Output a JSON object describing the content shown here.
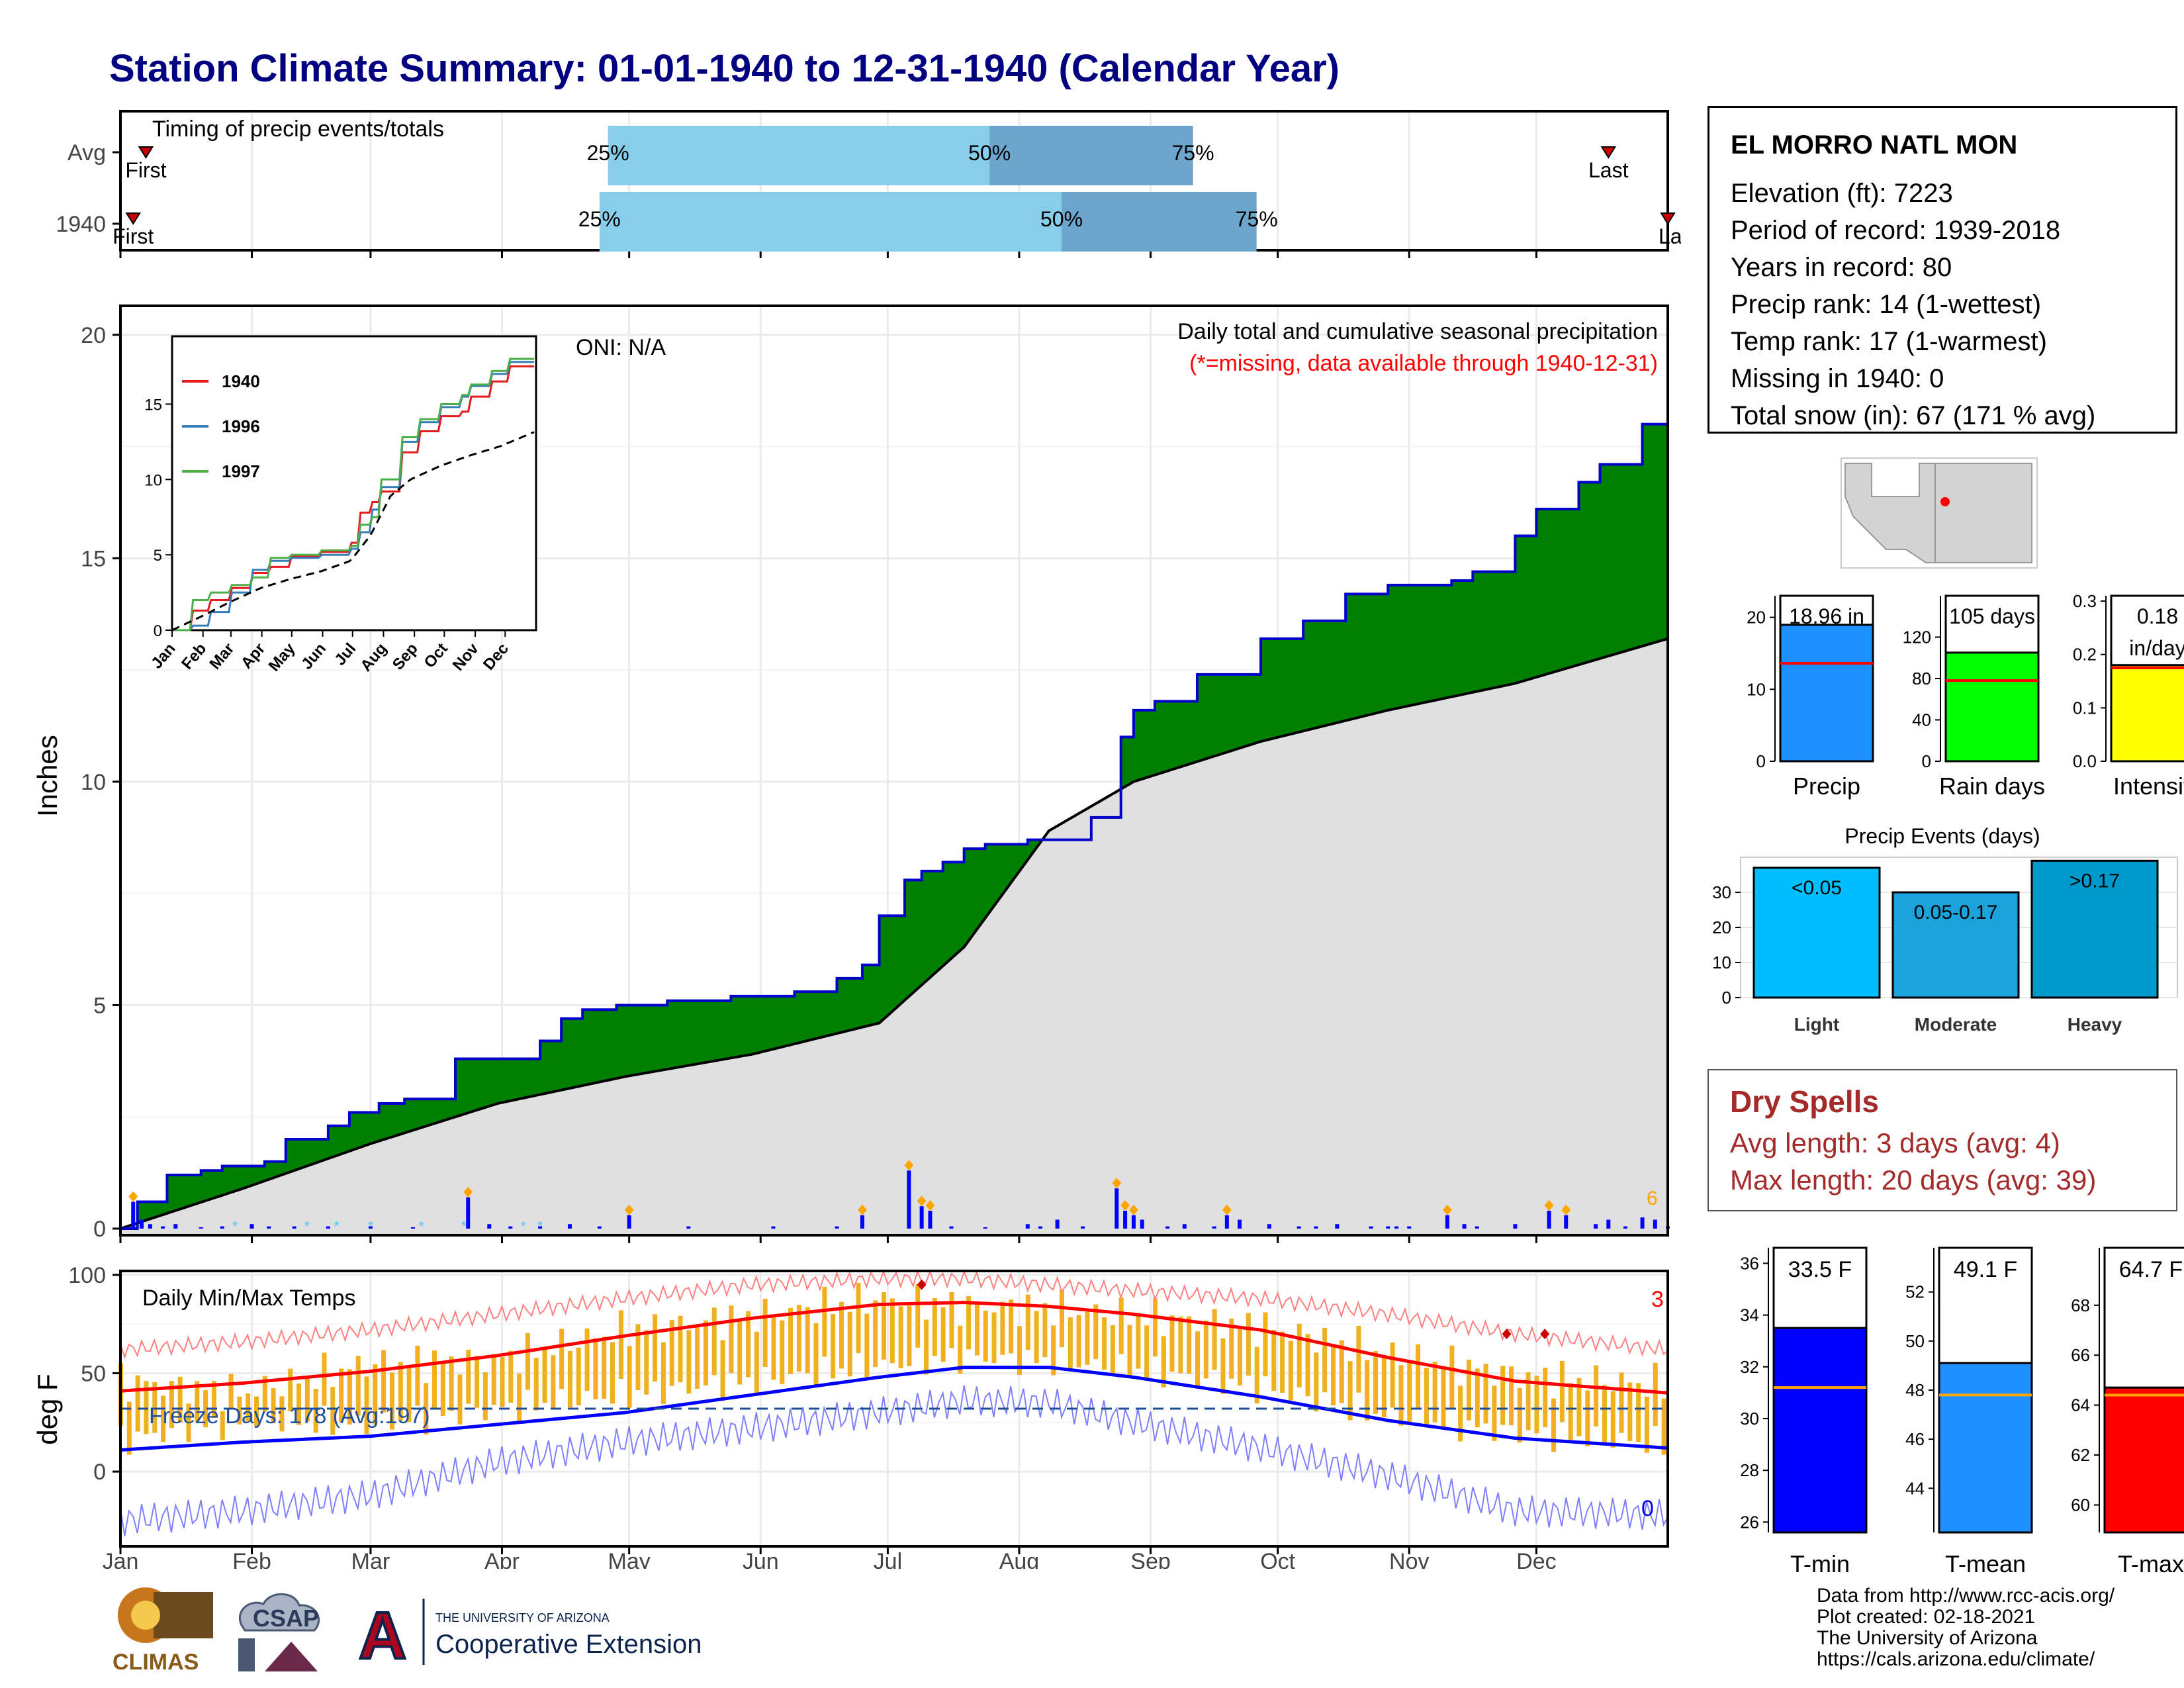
{
  "title": "Station Climate Summary: 01-01-1940 to 12-31-1940 (Calendar Year)",
  "colors": {
    "title": "#000080",
    "green": "#008000",
    "blue_bar": "#0000ff",
    "gray_fill": "#e0e0e0",
    "light_blue": "#87ceeb",
    "mid_blue": "#6ca6cd",
    "precip": "#1e90ff",
    "rain_days": "#00ff00",
    "intensity": "#ffff00",
    "tmin": "#0000ff",
    "tmean": "#1e90ff",
    "tmax": "#ff0000",
    "temp_bars": "#f0b020",
    "dry_spells": "#a52a2a",
    "avg_line": "#ff0000",
    "avg_line_temp": "#ffa500"
  },
  "timing_panel": {
    "title": "Timing of precip events/totals",
    "rows": [
      "Avg",
      "1940"
    ],
    "first_label": "First",
    "last_label": "Last",
    "last_label_1940": "La",
    "pct_labels": [
      "25%",
      "50%",
      "75%"
    ],
    "avg": {
      "first_doy": 7,
      "p25_doy": 116,
      "p50_doy": 206,
      "p75_doy": 254,
      "last_doy": 352
    },
    "y1940": {
      "first_doy": 4,
      "p25_doy": 114,
      "p50_doy": 223,
      "p75_doy": 269,
      "last_doy": 366
    }
  },
  "main_panel": {
    "title": "Daily total and cumulative seasonal precipitation",
    "subtitle": "(*=missing, data available through 1940-12-31)",
    "oni": "ONI: N/A",
    "ylabel": "Inches",
    "yticks": [
      "0",
      "5",
      "10",
      "15",
      "20"
    ],
    "ylim": [
      0,
      20.5
    ],
    "month_labels": [
      "Jan",
      "Feb",
      "Mar",
      "Apr",
      "May",
      "Jun",
      "Jul",
      "Aug",
      "Sep",
      "Oct",
      "Nov",
      "Dec"
    ],
    "flag_label": "6"
  },
  "inset": {
    "legend": [
      "1940",
      "1996",
      "1997"
    ],
    "legend_colors": [
      "#e41a1c",
      "#377eb8",
      "#4daf4a"
    ],
    "yticks": [
      "0",
      "5",
      "10",
      "15"
    ],
    "month_labels": [
      "Jan",
      "Feb",
      "Mar",
      "Apr",
      "May",
      "Jun",
      "Jul",
      "Aug",
      "Sep",
      "Oct",
      "Nov",
      "Dec"
    ]
  },
  "temp_panel": {
    "title": "Daily Min/Max Temps",
    "ylabel": "deg F",
    "yticks": [
      "0",
      "50",
      "100"
    ],
    "freeze_label": "Freeze Days: 178 (Avg:197)",
    "count_high": "3",
    "count_low": "0",
    "month_labels": [
      "Jan",
      "Feb",
      "Mar",
      "Apr",
      "May",
      "Jun",
      "Jul",
      "Aug",
      "Sep",
      "Oct",
      "Nov",
      "Dec"
    ]
  },
  "station": {
    "name": "EL MORRO NATL MON",
    "lines": [
      "Elevation (ft): 7223",
      "Period of record: 1939-2018",
      "Years in record: 80",
      "Precip rank: 14 (1-wettest)",
      "Temp rank: 17 (1-warmest)",
      "Missing in 1940: 0",
      "Total snow (in): 67 (171 % avg)"
    ]
  },
  "mini_bars": [
    {
      "label": "Precip",
      "value_text": "18.96 in",
      "value": 18.96,
      "avg": 13.6,
      "ymax": 23,
      "ticks": [
        "0",
        "10",
        "20"
      ],
      "tick_vals": [
        0,
        10,
        20
      ],
      "color": "#1e90ff"
    },
    {
      "label": "Rain days",
      "value_text": "105 days",
      "value": 105,
      "avg": 78,
      "ymax": 160,
      "ticks": [
        "0",
        "40",
        "80",
        "120"
      ],
      "tick_vals": [
        0,
        40,
        80,
        120
      ],
      "color": "#00ff00"
    },
    {
      "label": "Intensity",
      "value_text_1": "0.18",
      "value_text_2": "in/day",
      "value": 0.18,
      "avg": 0.175,
      "ymax": 0.31,
      "ticks": [
        "0.0",
        "0.1",
        "0.2",
        "0.3"
      ],
      "tick_vals": [
        0,
        0.1,
        0.2,
        0.3
      ],
      "color": "#ffff00"
    }
  ],
  "precip_events": {
    "title": "Precip Events (days)",
    "categories": [
      "Light",
      "Moderate",
      "Heavy"
    ],
    "bar_labels": [
      "<0.05",
      "0.05-0.17",
      ">0.17"
    ],
    "values": [
      37,
      30,
      39
    ],
    "ticks": [
      "0",
      "10",
      "20",
      "30"
    ],
    "colors": [
      "#00bfff",
      "#1ca3dc",
      "#0099cc"
    ]
  },
  "dry_spells": {
    "title": "Dry Spells",
    "avg_length": "Avg length: 3 days (avg: 4)",
    "max_length": "Max length: 20 days (avg: 39)"
  },
  "temp_bars": [
    {
      "label": "T-min",
      "value_text": "33.5 F",
      "value": 33.5,
      "avg": 31.2,
      "ymin": 25.6,
      "ymax": 36.6,
      "ticks": [
        "26",
        "28",
        "30",
        "32",
        "34",
        "36"
      ],
      "tick_vals": [
        26,
        28,
        30,
        32,
        34,
        36
      ],
      "color": "#0000ff"
    },
    {
      "label": "T-mean",
      "value_text": "49.1 F",
      "value": 49.1,
      "avg": 47.8,
      "ymin": 42.2,
      "ymax": 53.8,
      "ticks": [
        "44",
        "46",
        "48",
        "50",
        "52"
      ],
      "tick_vals": [
        44,
        46,
        48,
        50,
        52
      ],
      "color": "#1e90ff"
    },
    {
      "label": "T-max",
      "value_text": "64.7 F",
      "value": 64.7,
      "avg": 64.4,
      "ymin": 58.9,
      "ymax": 70.3,
      "ticks": [
        "60",
        "62",
        "64",
        "66",
        "68"
      ],
      "tick_vals": [
        60,
        62,
        64,
        66,
        68
      ],
      "color": "#ff0000"
    }
  ],
  "footer": {
    "source_lines": [
      "Data from http://www.rcc-acis.org/",
      "Plot created: 02-18-2021",
      "The University of Arizona",
      "https://cals.arizona.edu/climate/"
    ],
    "logo_climas": "CLIMAS",
    "logo_csap": "CSAP",
    "coop_small": "THE UNIVERSITY OF ARIZONA",
    "coop_big": "Cooperative Extension",
    "ua_letter": "A"
  },
  "chart_data": [
    {
      "type": "area",
      "name": "cumulative precipitation 1940 vs average",
      "x_unit": "day of year",
      "series": [
        {
          "name": "1940 cumulative",
          "x": [
            1,
            5,
            12,
            20,
            25,
            35,
            40,
            50,
            55,
            62,
            68,
            75,
            80,
            90,
            100,
            105,
            110,
            118,
            125,
            130,
            135,
            145,
            155,
            160,
            170,
            176,
            180,
            186,
            190,
            195,
            200,
            205,
            215,
            230,
            237,
            240,
            245,
            255,
            270,
            280,
            290,
            300,
            315,
            320,
            330,
            335,
            345,
            350,
            360,
            366
          ],
          "y": [
            0,
            0.6,
            1.2,
            1.3,
            1.4,
            1.5,
            2.0,
            2.3,
            2.6,
            2.8,
            2.9,
            2.9,
            3.8,
            3.8,
            4.2,
            4.7,
            4.9,
            5.0,
            5.0,
            5.1,
            5.1,
            5.2,
            5.2,
            5.3,
            5.6,
            5.9,
            7.0,
            7.8,
            8.0,
            8.2,
            8.5,
            8.6,
            8.7,
            9.2,
            11.0,
            11.6,
            11.8,
            12.4,
            13.2,
            13.6,
            14.2,
            14.4,
            14.5,
            14.7,
            15.5,
            16.1,
            16.7,
            17.1,
            18.0,
            18.96
          ]
        },
        {
          "name": "average cumulative",
          "x": [
            1,
            30,
            60,
            90,
            120,
            150,
            180,
            200,
            220,
            240,
            270,
            300,
            330,
            366
          ],
          "y": [
            0,
            0.9,
            1.9,
            2.8,
            3.4,
            3.9,
            4.6,
            6.3,
            8.9,
            10.0,
            10.9,
            11.6,
            12.2,
            13.2
          ]
        }
      ]
    },
    {
      "type": "bar",
      "name": "daily precipitation 1940",
      "x_unit": "day of year",
      "x": [
        4,
        6,
        8,
        11,
        14,
        20,
        25,
        32,
        36,
        42,
        50,
        60,
        70,
        83,
        88,
        93,
        100,
        107,
        114,
        121,
        135,
        155,
        170,
        176,
        187,
        190,
        192,
        197,
        205,
        215,
        218,
        222,
        228,
        236,
        238,
        240,
        242,
        248,
        252,
        259,
        262,
        265,
        272,
        279,
        283,
        288,
        296,
        300,
        302,
        305,
        314,
        318,
        321,
        330,
        338,
        342,
        349,
        352,
        356,
        360,
        363,
        366
      ],
      "values": [
        0.6,
        0.2,
        0.1,
        0.05,
        0.1,
        0.03,
        0.05,
        0.1,
        0.05,
        0.05,
        0.05,
        0.05,
        0.03,
        0.7,
        0.1,
        0.05,
        0.05,
        0.1,
        0.05,
        0.3,
        0.05,
        0.05,
        0.05,
        0.3,
        1.3,
        0.5,
        0.4,
        0.05,
        0.03,
        0.1,
        0.05,
        0.2,
        0.05,
        0.9,
        0.4,
        0.3,
        0.2,
        0.05,
        0.1,
        0.05,
        0.3,
        0.2,
        0.1,
        0.05,
        0.05,
        0.1,
        0.05,
        0.05,
        0.05,
        0.05,
        0.3,
        0.1,
        0.05,
        0.1,
        0.4,
        0.3,
        0.1,
        0.2,
        0.05,
        0.25,
        0.2,
        0.05
      ]
    },
    {
      "type": "line",
      "name": "inset cumulative comparison",
      "x_unit": "day of year",
      "series": [
        {
          "name": "1940",
          "x": [
            1,
            20,
            40,
            60,
            80,
            100,
            120,
            150,
            180,
            190,
            200,
            210,
            230,
            250,
            270,
            290,
            300,
            320,
            340,
            366
          ],
          "y": [
            0,
            1.3,
            2.0,
            2.8,
            3.8,
            4.2,
            4.9,
            5.2,
            5.8,
            7.8,
            8.5,
            9.2,
            11.8,
            13.2,
            14.2,
            14.5,
            15.5,
            16.5,
            17.5,
            18.96
          ]
        },
        {
          "name": "1996",
          "x": [
            1,
            20,
            40,
            60,
            80,
            100,
            120,
            150,
            180,
            190,
            200,
            210,
            230,
            250,
            270,
            290,
            300,
            320,
            340,
            366
          ],
          "y": [
            0,
            0.3,
            1.2,
            2.5,
            4.0,
            4.6,
            4.8,
            5.0,
            5.4,
            6.5,
            8.0,
            9.5,
            12.5,
            13.8,
            14.8,
            15.5,
            16.2,
            17.0,
            17.8,
            18.3
          ]
        },
        {
          "name": "1997",
          "x": [
            1,
            20,
            40,
            60,
            80,
            100,
            120,
            150,
            180,
            190,
            200,
            210,
            230,
            250,
            270,
            290,
            300,
            320,
            340,
            366
          ],
          "y": [
            0,
            2.0,
            2.5,
            3.0,
            3.5,
            4.8,
            5.0,
            5.3,
            5.6,
            7.0,
            7.5,
            10.0,
            12.8,
            14.0,
            15.0,
            15.6,
            16.3,
            17.2,
            18.0,
            18.5
          ]
        },
        {
          "name": "average",
          "x": [
            1,
            30,
            60,
            90,
            120,
            150,
            180,
            200,
            220,
            240,
            270,
            300,
            330,
            366
          ],
          "y": [
            0,
            0.9,
            1.9,
            2.8,
            3.4,
            3.9,
            4.6,
            6.3,
            8.9,
            10.0,
            10.9,
            11.6,
            12.2,
            13.2
          ]
        }
      ]
    },
    {
      "type": "line",
      "name": "daily min/max temps",
      "x_unit": "day of year",
      "series": [
        {
          "name": "avg max",
          "x": [
            1,
            30,
            60,
            90,
            120,
            150,
            180,
            200,
            220,
            240,
            270,
            300,
            330,
            366
          ],
          "y": [
            41,
            45,
            51,
            59,
            69,
            78,
            85,
            86,
            84,
            80,
            72,
            58,
            46,
            40
          ]
        },
        {
          "name": "avg min",
          "x": [
            1,
            30,
            60,
            90,
            120,
            150,
            180,
            200,
            220,
            240,
            270,
            300,
            330,
            366
          ],
          "y": [
            11,
            15,
            18,
            24,
            30,
            39,
            48,
            53,
            53,
            48,
            38,
            26,
            17,
            12
          ]
        },
        {
          "name": "record high",
          "x": [
            1,
            30,
            60,
            90,
            120,
            150,
            180,
            200,
            220,
            240,
            270,
            300,
            330,
            366
          ],
          "y": [
            62,
            66,
            72,
            80,
            88,
            95,
            98,
            98,
            95,
            92,
            88,
            80,
            70,
            62
          ]
        },
        {
          "name": "record low",
          "x": [
            1,
            30,
            60,
            90,
            120,
            150,
            180,
            200,
            220,
            240,
            270,
            300,
            330,
            366
          ],
          "y": [
            -25,
            -20,
            -12,
            5,
            15,
            22,
            30,
            36,
            35,
            25,
            12,
            -2,
            -20,
            -22
          ]
        },
        {
          "name": "1940 max",
          "x": [
            1,
            30,
            60,
            90,
            120,
            150,
            180,
            200,
            220,
            240,
            270,
            300,
            330,
            366
          ],
          "y": [
            46,
            40,
            55,
            57,
            72,
            79,
            88,
            84,
            83,
            79,
            74,
            60,
            49,
            44
          ]
        },
        {
          "name": "1940 min",
          "x": [
            1,
            30,
            60,
            90,
            120,
            150,
            180,
            200,
            220,
            240,
            270,
            300,
            330,
            366
          ],
          "y": [
            10,
            20,
            18,
            26,
            33,
            40,
            48,
            52,
            50,
            46,
            37,
            22,
            14,
            8
          ]
        }
      ],
      "freeze_threshold": 32,
      "ylim": [
        -38,
        102
      ]
    },
    {
      "type": "bar",
      "name": "precip events",
      "categories": [
        "Light",
        "Moderate",
        "Heavy"
      ],
      "values": [
        37,
        30,
        39
      ]
    },
    {
      "type": "bar",
      "name": "station totals",
      "categories": [
        "Precip",
        "Rain days",
        "Intensity"
      ],
      "values": [
        18.96,
        105,
        0.18
      ]
    },
    {
      "type": "bar",
      "name": "temperature means",
      "categories": [
        "T-min",
        "T-mean",
        "T-max"
      ],
      "values": [
        33.5,
        49.1,
        64.7
      ]
    }
  ]
}
